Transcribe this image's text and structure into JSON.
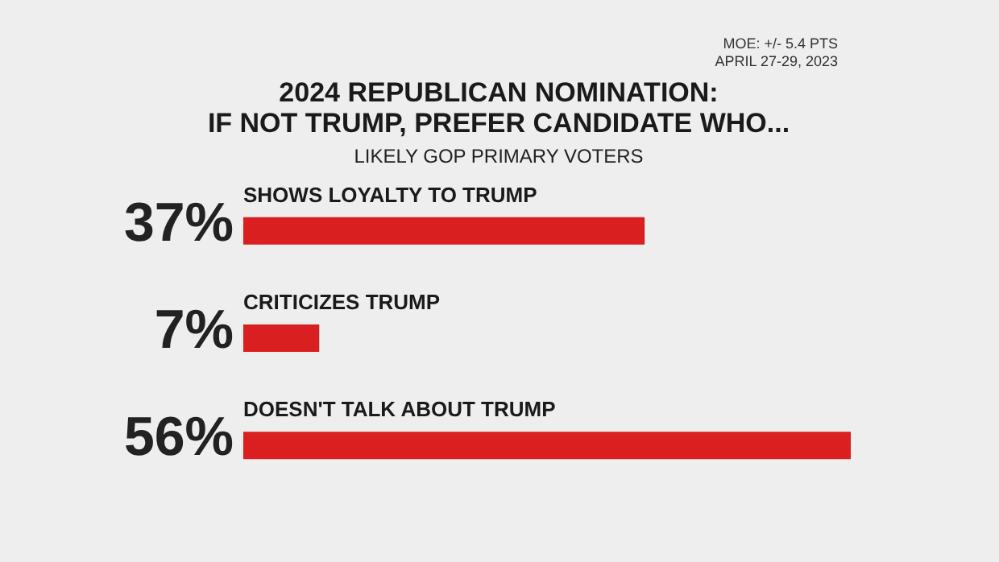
{
  "chart_data": {
    "type": "bar",
    "orientation": "horizontal",
    "title": "2024 REPUBLICAN NOMINATION: IF NOT TRUMP, PREFER CANDIDATE WHO...",
    "subtitle": "LIKELY GOP PRIMARY VOTERS",
    "categories": [
      "SHOWS LOYALTY TO TRUMP",
      "CRITICIZES TRUMP",
      "DOESN'T TALK ABOUT TRUMP"
    ],
    "values": [
      37,
      7,
      56
    ],
    "value_labels": [
      "37%",
      "7%",
      "56%"
    ],
    "color": "#d91f1f",
    "annotations": [
      "MOE: +/- 5.4 PTS",
      "APRIL 27-29, 2023"
    ]
  }
}
